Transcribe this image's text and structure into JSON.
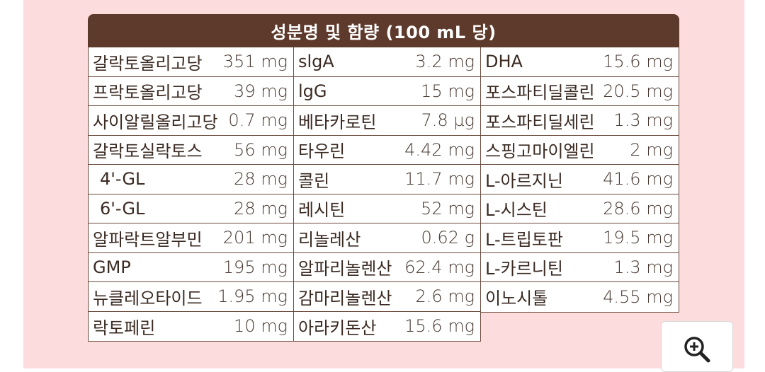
{
  "table": {
    "title": "성분명 및 함량 (100 mL 당)",
    "columns": [
      [
        {
          "name": "갈락토올리고당",
          "value": "351 mg"
        },
        {
          "name": "프락토올리고당",
          "value": "39 mg"
        },
        {
          "name": "사이알릴올리고당",
          "value": "0.7 mg"
        },
        {
          "name": "갈락토실락토스",
          "value": "56 mg"
        },
        {
          "name": "4'-GL",
          "value": "28 mg"
        },
        {
          "name": "6'-GL",
          "value": "28 mg"
        },
        {
          "name": "알파락트알부민",
          "value": "201 mg"
        },
        {
          "name": "GMP",
          "value": "195 mg"
        },
        {
          "name": "뉴클레오타이드",
          "value": "1.95 mg"
        },
        {
          "name": "락토페린",
          "value": "10 mg"
        }
      ],
      [
        {
          "name": "slgA",
          "value": "3.2 mg"
        },
        {
          "name": "lgG",
          "value": "15 mg"
        },
        {
          "name": "베타카로틴",
          "value": "7.8 µg"
        },
        {
          "name": "타우린",
          "value": "4.42 mg"
        },
        {
          "name": "콜린",
          "value": "11.7 mg"
        },
        {
          "name": "레시틴",
          "value": "52 mg"
        },
        {
          "name": "리놀레산",
          "value": "0.62 g"
        },
        {
          "name": "알파리놀렌산",
          "value": "62.4 mg"
        },
        {
          "name": "감마리놀렌산",
          "value": "2.6 mg"
        },
        {
          "name": "아라키돈산",
          "value": "15.6 mg"
        }
      ],
      [
        {
          "name": "DHA",
          "value": "15.6 mg"
        },
        {
          "name": "포스파티딜콜린",
          "value": "20.5 mg"
        },
        {
          "name": "포스파티딜세린",
          "value": "1.3 mg"
        },
        {
          "name": "스핑고마이엘린",
          "value": "2 mg"
        },
        {
          "name": "L-아르지닌",
          "value": "41.6 mg"
        },
        {
          "name": "L-시스틴",
          "value": "28.6 mg"
        },
        {
          "name": "L-트립토판",
          "value": "19.5 mg"
        },
        {
          "name": "L-카르니틴",
          "value": "1.3 mg"
        },
        {
          "name": "이노시톨",
          "value": "4.55 mg"
        }
      ]
    ]
  },
  "zoom_button": {
    "icon": "zoom-in-icon"
  },
  "colors": {
    "header_bg": "#5e3a2c",
    "border": "#6b4a3c",
    "page_bg": "#fcdcdd"
  }
}
